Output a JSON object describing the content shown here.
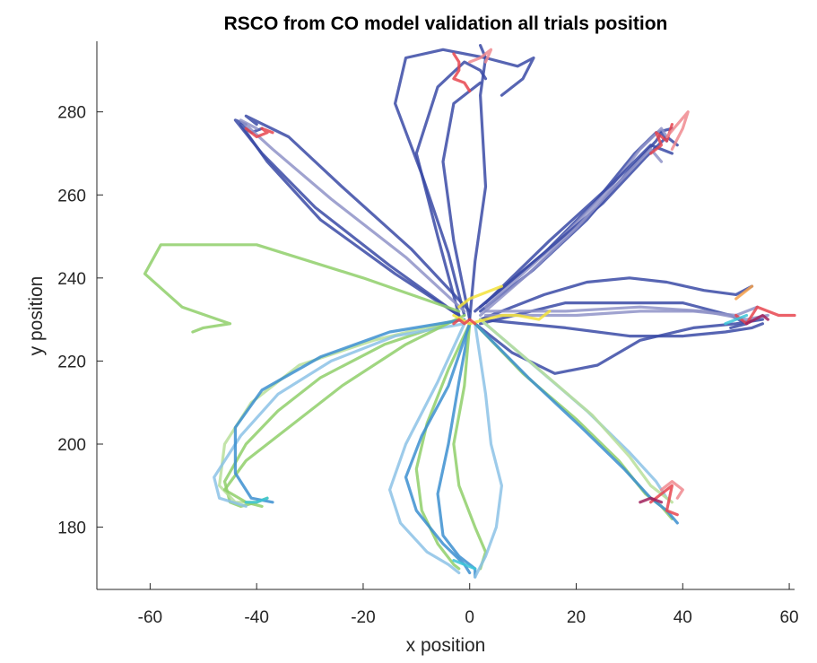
{
  "chart_data": {
    "type": "line",
    "title": "RSCO from CO model validation all trials position",
    "xlabel": "x position",
    "ylabel": "y position",
    "xlim": [
      -70,
      61
    ],
    "ylim": [
      165,
      297
    ],
    "xticks": [
      -60,
      -40,
      -20,
      0,
      20,
      40,
      60
    ],
    "yticks": [
      180,
      200,
      220,
      240,
      260,
      280
    ],
    "grid": false,
    "legend": "none",
    "colors": {
      "dark_blue": "#3a4aa6",
      "light_purple": "#8f93c8",
      "green": "#8fcf6a",
      "light_green": "#b9df9a",
      "blue": "#3c8fd0",
      "light_blue": "#8cc2e6",
      "yellow": "#f3e23a",
      "red": "#e8454f",
      "pink": "#f08a8f",
      "orange": "#f5a04a",
      "cyan": "#3cc6d8",
      "maroon": "#a0205a"
    },
    "series": [
      {
        "color": "#3a4aa6",
        "x": [
          0,
          1,
          3,
          2,
          3,
          2
        ],
        "y": [
          230,
          244,
          262,
          284,
          293,
          296
        ]
      },
      {
        "color": "#3a4aa6",
        "x": [
          -1,
          -4,
          -9,
          -14,
          -12,
          -5,
          3,
          9,
          12,
          10,
          6
        ],
        "y": [
          231,
          246,
          265,
          282,
          293,
          295,
          293,
          291,
          293,
          288,
          284
        ]
      },
      {
        "color": "#3a4aa6",
        "x": [
          -2,
          -6,
          -10,
          -6,
          -1,
          2,
          3
        ],
        "y": [
          231,
          250,
          270,
          286,
          292,
          290,
          288
        ]
      },
      {
        "color": "#3a4aa6",
        "x": [
          0,
          -3,
          -5,
          -3,
          0,
          2
        ],
        "y": [
          230,
          249,
          268,
          282,
          285,
          287
        ]
      },
      {
        "color": "#3a4aa6",
        "x": [
          -2,
          -14,
          -28,
          -38,
          -43,
          -41,
          -39
        ],
        "y": [
          231,
          241,
          254,
          268,
          277,
          275,
          276
        ]
      },
      {
        "color": "#3a4aa6",
        "x": [
          -2,
          -15,
          -29,
          -39,
          -44,
          -42
        ],
        "y": [
          231,
          243,
          257,
          270,
          278,
          277
        ]
      },
      {
        "color": "#8f93c8",
        "x": [
          -1,
          -12,
          -26,
          -37,
          -43,
          -40
        ],
        "y": [
          232,
          245,
          259,
          271,
          278,
          276
        ]
      },
      {
        "color": "#3a4aa6",
        "x": [
          0,
          -11,
          -24,
          -34,
          -42,
          -40
        ],
        "y": [
          232,
          247,
          262,
          274,
          279,
          277
        ]
      },
      {
        "color": "#3a4aa6",
        "x": [
          2,
          12,
          22,
          30,
          35,
          36,
          37
        ],
        "y": [
          232,
          242,
          254,
          266,
          273,
          275,
          273
        ]
      },
      {
        "color": "#3a4aa6",
        "x": [
          2,
          14,
          24,
          31,
          35,
          38
        ],
        "y": [
          233,
          246,
          259,
          270,
          275,
          276
        ]
      },
      {
        "color": "#8f93c8",
        "x": [
          3,
          16,
          26,
          32,
          36,
          37
        ],
        "y": [
          233,
          248,
          261,
          271,
          276,
          274
        ]
      },
      {
        "color": "#3a4aa6",
        "x": [
          1,
          13,
          25,
          33,
          37,
          39
        ],
        "y": [
          232,
          245,
          258,
          269,
          274,
          272
        ]
      },
      {
        "color": "#3a4aa6",
        "x": [
          3,
          15,
          27,
          34,
          38
        ],
        "y": [
          234,
          249,
          263,
          272,
          270
        ]
      },
      {
        "color": "#8f93c8",
        "x": [
          2,
          11,
          20,
          28,
          34,
          36
        ],
        "y": [
          231,
          241,
          252,
          263,
          271,
          268
        ]
      },
      {
        "color": "#3a4aa6",
        "x": [
          2,
          18,
          30,
          40,
          49,
          52,
          49
        ],
        "y": [
          229,
          234,
          234,
          234,
          231,
          229,
          228
        ]
      },
      {
        "color": "#3a4aa6",
        "x": [
          2,
          14,
          22,
          30,
          37,
          44,
          50,
          53
        ],
        "y": [
          230,
          236,
          239,
          240,
          239,
          237,
          236,
          238
        ]
      },
      {
        "color": "#8f93c8",
        "x": [
          3,
          20,
          32,
          42,
          50,
          54
        ],
        "y": [
          231,
          231,
          232,
          232,
          231,
          233
        ]
      },
      {
        "color": "#3a4aa6",
        "x": [
          2,
          18,
          30,
          40,
          48,
          53,
          55
        ],
        "y": [
          230,
          228,
          226,
          226,
          227,
          228,
          229
        ]
      },
      {
        "color": "#3a4aa6",
        "x": [
          1,
          8,
          16,
          24,
          32,
          42,
          50,
          55
        ],
        "y": [
          229,
          222,
          217,
          219,
          225,
          228,
          229,
          230
        ]
      },
      {
        "color": "#8f93c8",
        "x": [
          3,
          18,
          32,
          44,
          52,
          56
        ],
        "y": [
          232,
          232,
          233,
          232,
          230,
          231
        ]
      },
      {
        "color": "#8fcf6a",
        "x": [
          -2,
          -20,
          -40,
          -58,
          -61,
          -54,
          -45,
          -50,
          -52
        ],
        "y": [
          232,
          240,
          248,
          248,
          241,
          233,
          229,
          228,
          227
        ]
      },
      {
        "color": "#8fcf6a",
        "x": [
          -2,
          -16,
          -28,
          -36,
          -42,
          -46,
          -45,
          -43,
          -40,
          -38
        ],
        "y": [
          230,
          224,
          216,
          208,
          200,
          191,
          186,
          185,
          186,
          187
        ]
      },
      {
        "color": "#b9df9a",
        "x": [
          -2,
          -18,
          -32,
          -41,
          -46,
          -47,
          -44,
          -40
        ],
        "y": [
          230,
          225,
          219,
          210,
          200,
          190,
          186,
          186
        ]
      },
      {
        "color": "#8cc2e6",
        "x": [
          -1,
          -14,
          -26,
          -36,
          -43,
          -48,
          -47,
          -42
        ],
        "y": [
          229,
          226,
          220,
          212,
          202,
          192,
          187,
          185
        ]
      },
      {
        "color": "#8fcf6a",
        "x": [
          -1,
          -12,
          -24,
          -34,
          -42,
          -46,
          -42,
          -39
        ],
        "y": [
          231,
          224,
          214,
          204,
          196,
          189,
          186,
          185
        ]
      },
      {
        "color": "#3c8fd0",
        "x": [
          -1,
          -15,
          -28,
          -39,
          -44,
          -44,
          -41,
          -37
        ],
        "y": [
          230,
          227,
          221,
          213,
          204,
          193,
          187,
          186
        ]
      },
      {
        "color": "#8fcf6a",
        "x": [
          0,
          -4,
          -8,
          -10,
          -9,
          -6,
          -3,
          -2
        ],
        "y": [
          229,
          218,
          205,
          194,
          184,
          176,
          171,
          170
        ]
      },
      {
        "color": "#8cc2e6",
        "x": [
          -1,
          -6,
          -12,
          -15,
          -13,
          -8,
          -4,
          -2
        ],
        "y": [
          229,
          215,
          200,
          189,
          181,
          174,
          171,
          169
        ]
      },
      {
        "color": "#3c8fd0",
        "x": [
          0,
          -2,
          -4,
          -6,
          -5,
          -2,
          1,
          1
        ],
        "y": [
          229,
          215,
          200,
          188,
          178,
          173,
          170,
          168
        ]
      },
      {
        "color": "#8fcf6a",
        "x": [
          0,
          -1,
          -3,
          -2,
          1,
          3,
          2
        ],
        "y": [
          229,
          214,
          200,
          190,
          180,
          174,
          170
        ]
      },
      {
        "color": "#8cc2e6",
        "x": [
          1,
          3,
          4,
          6,
          5,
          3,
          1
        ],
        "y": [
          229,
          212,
          200,
          190,
          180,
          173,
          168
        ]
      },
      {
        "color": "#3c8fd0",
        "x": [
          0,
          -4,
          -9,
          -12,
          -10,
          -5,
          -1,
          0
        ],
        "y": [
          229,
          214,
          202,
          192,
          184,
          176,
          171,
          169
        ]
      },
      {
        "color": "#8fcf6a",
        "x": [
          1,
          10,
          20,
          28,
          33,
          36,
          38
        ],
        "y": [
          229,
          217,
          206,
          196,
          188,
          185,
          182
        ]
      },
      {
        "color": "#8cc2e6",
        "x": [
          2,
          12,
          22,
          30,
          35,
          37
        ],
        "y": [
          230,
          219,
          208,
          198,
          191,
          187
        ]
      },
      {
        "color": "#3c8fd0",
        "x": [
          1,
          11,
          21,
          29,
          34,
          37,
          39
        ],
        "y": [
          229,
          216,
          204,
          194,
          187,
          184,
          181
        ]
      },
      {
        "color": "#b9df9a",
        "x": [
          2,
          13,
          23,
          30,
          34,
          38
        ],
        "y": [
          230,
          218,
          207,
          197,
          190,
          186
        ]
      },
      {
        "color": "#f3e23a",
        "x": [
          -3,
          0,
          3,
          6,
          9,
          13,
          15
        ],
        "y": [
          231,
          229,
          230,
          231,
          231,
          230,
          232
        ]
      },
      {
        "color": "#f3e23a",
        "x": [
          -2,
          0,
          2,
          4,
          6
        ],
        "y": [
          233,
          235,
          236,
          237,
          238
        ]
      },
      {
        "color": "#e8454f",
        "x": [
          -3,
          -2,
          -1,
          0,
          1
        ],
        "y": [
          229,
          230,
          229,
          230,
          229
        ]
      },
      {
        "color": "#e8454f",
        "x": [
          -3,
          -2,
          -2,
          -3,
          -1,
          0
        ],
        "y": [
          294,
          292,
          290,
          288,
          287,
          285
        ]
      },
      {
        "color": "#f08a8f",
        "x": [
          0,
          2,
          4,
          3
        ],
        "y": [
          292,
          293,
          295,
          292
        ]
      },
      {
        "color": "#e8454f",
        "x": [
          -42,
          -40,
          -38,
          -39,
          -37
        ],
        "y": [
          276,
          274,
          275,
          276,
          275
        ]
      },
      {
        "color": "#e8454f",
        "x": [
          34,
          36,
          35,
          37,
          38
        ],
        "y": [
          270,
          272,
          275,
          273,
          277
        ]
      },
      {
        "color": "#f08a8f",
        "x": [
          37,
          39,
          41,
          40,
          38
        ],
        "y": [
          274,
          277,
          280,
          276,
          271
        ]
      },
      {
        "color": "#e8454f",
        "x": [
          50,
          52,
          54,
          56,
          58,
          61
        ],
        "y": [
          231,
          229,
          233,
          232,
          231,
          231
        ]
      },
      {
        "color": "#f5a04a",
        "x": [
          50,
          52,
          53
        ],
        "y": [
          235,
          237,
          238
        ]
      },
      {
        "color": "#3cc6d8",
        "x": [
          48,
          50,
          52
        ],
        "y": [
          229,
          230,
          231
        ]
      },
      {
        "color": "#a0205a",
        "x": [
          52,
          55,
          56
        ],
        "y": [
          229,
          231,
          230
        ]
      },
      {
        "color": "#e8454f",
        "x": [
          34,
          36,
          38,
          37,
          39
        ],
        "y": [
          186,
          188,
          190,
          184,
          183
        ]
      },
      {
        "color": "#f08a8f",
        "x": [
          36,
          38,
          40,
          39
        ],
        "y": [
          189,
          191,
          189,
          187
        ]
      },
      {
        "color": "#a0205a",
        "x": [
          32,
          34,
          36
        ],
        "y": [
          186,
          187,
          186
        ]
      },
      {
        "color": "#3cc6d8",
        "x": [
          -42,
          -40,
          -38
        ],
        "y": [
          186,
          186,
          187
        ]
      },
      {
        "color": "#3cc6d8",
        "x": [
          -3,
          -1,
          1
        ],
        "y": [
          172,
          171,
          170
        ]
      }
    ]
  }
}
